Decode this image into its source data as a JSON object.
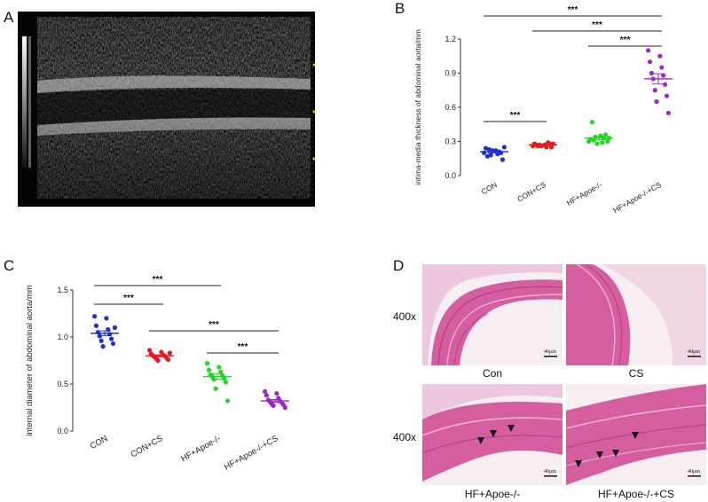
{
  "panels": {
    "a": "A",
    "b": "B",
    "c": "C",
    "d": "D"
  },
  "chart_data": [
    {
      "type": "scatter",
      "panel": "B",
      "ylabel": "intima-media thickness of abdominal aorta/mm",
      "ylim": [
        0,
        1.2
      ],
      "yticks": [
        "0.0",
        "0.3",
        "0.6",
        "0.9",
        "1.2"
      ],
      "categories": [
        "CON",
        "CON+CS",
        "HF+Apoe-/-",
        "HF+Apoe-/-+CS"
      ],
      "colors": [
        "#1f2fd6",
        "#e8191c",
        "#22d622",
        "#9b28c8"
      ],
      "series": [
        {
          "values": [
            0.2,
            0.22,
            0.24,
            0.19,
            0.17,
            0.21,
            0.23,
            0.2,
            0.18,
            0.14,
            0.22,
            0.25
          ],
          "mean": 0.21,
          "sem": 0.01
        },
        {
          "values": [
            0.26,
            0.27,
            0.28,
            0.25,
            0.27,
            0.29,
            0.26,
            0.28,
            0.27,
            0.25,
            0.26,
            0.28
          ],
          "mean": 0.27,
          "sem": 0.004
        },
        {
          "values": [
            0.3,
            0.35,
            0.32,
            0.29,
            0.47,
            0.33,
            0.31,
            0.36,
            0.34,
            0.3,
            0.28,
            0.33
          ],
          "mean": 0.33,
          "sem": 0.015
        },
        {
          "values": [
            1.1,
            1.05,
            1.0,
            0.95,
            0.9,
            0.88,
            0.85,
            0.8,
            0.75,
            0.7,
            0.65,
            0.55
          ],
          "mean": 0.85,
          "sem": 0.045
        }
      ],
      "significance": [
        {
          "from": 0,
          "to": 3,
          "label": "***"
        },
        {
          "from": 1,
          "to": 3,
          "label": "***"
        },
        {
          "from": 2,
          "to": 3,
          "label": "***"
        },
        {
          "from": 0,
          "to": 1,
          "label": "***"
        }
      ]
    },
    {
      "type": "scatter",
      "panel": "C",
      "ylabel": "internal diameter of abdominal aorta/mm",
      "ylim": [
        0,
        1.5
      ],
      "yticks": [
        "0.0",
        "0.5",
        "1.0",
        "1.5"
      ],
      "categories": [
        "CON",
        "CON+CS",
        "HF+Apoe-/-",
        "HF+Apoe-/-+CS"
      ],
      "colors": [
        "#1f2fd6",
        "#e8191c",
        "#22d622",
        "#9b28c8"
      ],
      "series": [
        {
          "values": [
            1.22,
            1.2,
            1.12,
            1.08,
            1.05,
            1.03,
            1.01,
            0.98,
            0.96,
            0.93,
            0.9,
            1.1
          ],
          "mean": 1.04,
          "sem": 0.025
        },
        {
          "values": [
            0.86,
            0.84,
            0.82,
            0.81,
            0.8,
            0.8,
            0.79,
            0.78,
            0.77,
            0.76,
            0.75,
            0.83
          ],
          "mean": 0.8,
          "sem": 0.01
        },
        {
          "values": [
            0.72,
            0.68,
            0.65,
            0.63,
            0.6,
            0.59,
            0.58,
            0.56,
            0.55,
            0.52,
            0.45,
            0.32
          ],
          "mean": 0.58,
          "sem": 0.03
        },
        {
          "values": [
            0.42,
            0.4,
            0.38,
            0.35,
            0.33,
            0.32,
            0.31,
            0.3,
            0.29,
            0.28,
            0.27,
            0.25
          ],
          "mean": 0.32,
          "sem": 0.015
        }
      ],
      "significance": [
        {
          "from": 0,
          "to": 2,
          "label": "***"
        },
        {
          "from": 0,
          "to": 1,
          "label": "***"
        },
        {
          "from": 1,
          "to": 3,
          "label": "***"
        },
        {
          "from": 2,
          "to": 3,
          "label": "***"
        }
      ]
    }
  ],
  "histology": {
    "magnification": "400x",
    "scale_bar": "40μm",
    "captions": [
      "Con",
      "CS",
      "HF+Apoe-/-",
      "HF+Apoe-/-+CS"
    ]
  }
}
